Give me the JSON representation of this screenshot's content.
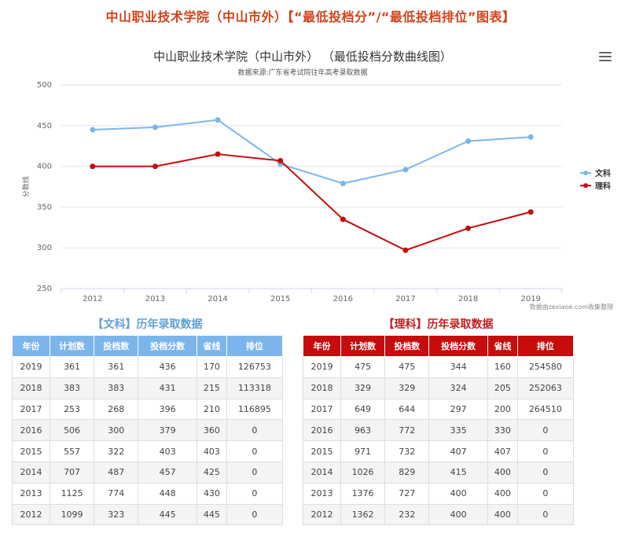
{
  "page": {
    "title": "中山职业技术学院（中山市外）【“最低投档分”/“最低投档排位”图表】"
  },
  "chart_data": {
    "type": "line",
    "title": "中山职业技术学院（中山市外） （最低投档分数曲线图）",
    "subtitle": "数据来源:广东省考试院往年高考录取数据",
    "ylabel": "分数线",
    "categories": [
      "2012",
      "2013",
      "2014",
      "2015",
      "2016",
      "2017",
      "2018",
      "2019"
    ],
    "ylim": [
      250,
      500
    ],
    "yticks": [
      250,
      300,
      350,
      400,
      450,
      500
    ],
    "grid": true,
    "legend_position": "right",
    "credit": "数据由zexiaoe.com收集整理",
    "series": [
      {
        "name": "文科",
        "color": "#7cb5ec",
        "values": [
          445,
          448,
          457,
          403,
          379,
          396,
          431,
          436
        ]
      },
      {
        "name": "理科",
        "color": "#c60c0c",
        "values": [
          400,
          400,
          415,
          407,
          335,
          297,
          324,
          344
        ]
      }
    ]
  },
  "tables": {
    "wen": {
      "title": "【文科】历年录取数据",
      "headers": [
        "年份",
        "计划数",
        "投档数",
        "投档分数",
        "省线",
        "排位"
      ],
      "rows": [
        [
          "2019",
          "361",
          "361",
          "436",
          "170",
          "126753"
        ],
        [
          "2018",
          "383",
          "383",
          "431",
          "215",
          "113318"
        ],
        [
          "2017",
          "253",
          "268",
          "396",
          "210",
          "116895"
        ],
        [
          "2016",
          "506",
          "300",
          "379",
          "360",
          "0"
        ],
        [
          "2015",
          "557",
          "322",
          "403",
          "403",
          "0"
        ],
        [
          "2014",
          "707",
          "487",
          "457",
          "425",
          "0"
        ],
        [
          "2013",
          "1125",
          "774",
          "448",
          "430",
          "0"
        ],
        [
          "2012",
          "1099",
          "323",
          "445",
          "445",
          "0"
        ]
      ]
    },
    "li": {
      "title": "【理科】历年录取数据",
      "headers": [
        "年份",
        "计划数",
        "投档数",
        "投档分数",
        "省线",
        "排位"
      ],
      "rows": [
        [
          "2019",
          "475",
          "475",
          "344",
          "160",
          "254580"
        ],
        [
          "2018",
          "329",
          "329",
          "324",
          "205",
          "252063"
        ],
        [
          "2017",
          "649",
          "644",
          "297",
          "200",
          "264510"
        ],
        [
          "2016",
          "963",
          "772",
          "335",
          "330",
          "0"
        ],
        [
          "2015",
          "971",
          "732",
          "407",
          "407",
          "0"
        ],
        [
          "2014",
          "1026",
          "829",
          "415",
          "400",
          "0"
        ],
        [
          "2013",
          "1376",
          "727",
          "400",
          "400",
          "0"
        ],
        [
          "2012",
          "1362",
          "232",
          "400",
          "400",
          "0"
        ]
      ]
    }
  },
  "icons": {
    "menu": "hamburger-menu-icon"
  }
}
